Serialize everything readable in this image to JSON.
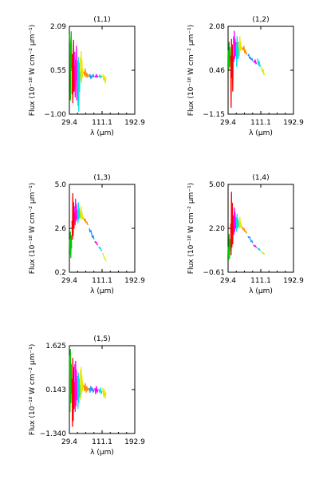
{
  "chart_data": [
    {
      "type": "line",
      "title": "(1,1)",
      "xlabel": "λ (μm)",
      "ylabel": "Flux (10⁻¹⁸ W cm⁻² μm⁻¹)",
      "x_ticks": [
        "29.4",
        "111.1",
        "192.9"
      ],
      "y_ticks": [
        "2.09",
        "0.55",
        "−1.00"
      ],
      "xlim": [
        29.4,
        192.9
      ],
      "ylim": [
        -1.0,
        2.09
      ],
      "segments": [
        {
          "color": "#00c800",
          "x": [
            30,
            31,
            32,
            33,
            34,
            35
          ],
          "y": [
            1.8,
            1.4,
            -0.5,
            1.2,
            1.9,
            0.6
          ]
        },
        {
          "color": "#ff0000",
          "x": [
            36,
            37,
            38,
            39,
            40,
            41,
            42
          ],
          "y": [
            -0.3,
            1.1,
            -0.6,
            0.9,
            1.6,
            -0.2,
            0.7
          ]
        },
        {
          "color": "#ff00ff",
          "x": [
            43,
            44,
            45,
            46,
            47,
            48,
            49
          ],
          "y": [
            1.2,
            -0.4,
            0.9,
            0.2,
            1.4,
            -0.5,
            0.8
          ]
        },
        {
          "color": "#00e0e0",
          "x": [
            50,
            51,
            52,
            53,
            54,
            55,
            56
          ],
          "y": [
            0.9,
            -0.7,
            1.0,
            -0.9,
            0.8,
            -0.2,
            0.5
          ]
        },
        {
          "color": "#e6e600",
          "x": [
            57,
            58,
            59,
            60,
            61,
            62,
            63
          ],
          "y": [
            1.0,
            0.2,
            1.2,
            0.1,
            0.9,
            0.3,
            0.6
          ]
        },
        {
          "color": "#ff8c00",
          "x": [
            65,
            67,
            69,
            71,
            73,
            75,
            77
          ],
          "y": [
            0.5,
            0.35,
            0.6,
            0.3,
            0.45,
            0.3,
            0.4
          ]
        },
        {
          "color": "#1e90ff",
          "x": [
            79,
            81,
            83,
            85,
            87,
            89,
            91
          ],
          "y": [
            0.3,
            0.4,
            0.25,
            0.35,
            0.3,
            0.4,
            0.3
          ]
        },
        {
          "color": "#ff00ff",
          "x": [
            93,
            95,
            97,
            99,
            101
          ],
          "y": [
            0.35,
            0.3,
            0.4,
            0.3,
            0.35
          ]
        },
        {
          "color": "#00e0e0",
          "x": [
            103,
            105,
            107,
            109,
            111
          ],
          "y": [
            0.3,
            0.38,
            0.28,
            0.35,
            0.3
          ]
        },
        {
          "color": "#e6e600",
          "x": [
            113,
            115,
            117,
            119,
            121
          ],
          "y": [
            0.4,
            0.2,
            0.35,
            0.1,
            0.3
          ]
        }
      ]
    },
    {
      "type": "line",
      "title": "(1,2)",
      "xlabel": "λ (μm)",
      "ylabel": "Flux (10⁻¹⁸ W cm⁻² μm⁻¹)",
      "x_ticks": [
        "29.4",
        "111.1",
        "192.9"
      ],
      "y_ticks": [
        "2.08",
        "0.46",
        "−1.15"
      ],
      "xlim": [
        29.4,
        192.9
      ],
      "ylim": [
        -1.15,
        2.08
      ],
      "segments": [
        {
          "color": "#00c800",
          "x": [
            30,
            31,
            32,
            33,
            34,
            35
          ],
          "y": [
            1.2,
            0.5,
            1.5,
            0.6,
            1.3,
            0.8
          ]
        },
        {
          "color": "#ff0000",
          "x": [
            36,
            37,
            38,
            39,
            40,
            41,
            42
          ],
          "y": [
            1.0,
            -0.9,
            1.6,
            0.2,
            1.4,
            -0.3,
            1.0
          ]
        },
        {
          "color": "#ff00ff",
          "x": [
            43,
            44,
            45,
            46,
            47,
            48,
            49
          ],
          "y": [
            1.7,
            0.8,
            1.9,
            0.9,
            1.6,
            1.0,
            1.5
          ]
        },
        {
          "color": "#00e0e0",
          "x": [
            50,
            51,
            52,
            53,
            54,
            55,
            56
          ],
          "y": [
            1.4,
            0.6,
            1.7,
            0.9,
            1.5,
            0.9,
            1.3
          ]
        },
        {
          "color": "#e6e600",
          "x": [
            57,
            58,
            59,
            60,
            61,
            62,
            63
          ],
          "y": [
            1.5,
            1.0,
            1.7,
            1.2,
            1.5,
            1.2,
            1.35
          ]
        },
        {
          "color": "#ff8c00",
          "x": [
            65,
            67,
            69,
            71,
            73,
            75,
            77
          ],
          "y": [
            1.3,
            1.2,
            1.35,
            1.1,
            1.2,
            1.05,
            1.1
          ]
        },
        {
          "color": "#1e90ff",
          "x": [
            79,
            81,
            83,
            85,
            87,
            89,
            91
          ],
          "y": [
            1.0,
            1.05,
            0.9,
            0.95,
            0.85,
            0.9,
            0.8
          ]
        },
        {
          "color": "#ff00ff",
          "x": [
            93,
            95,
            97,
            99,
            101
          ],
          "y": [
            0.8,
            0.75,
            0.85,
            0.7,
            0.75
          ]
        },
        {
          "color": "#00e0e0",
          "x": [
            103,
            105,
            107,
            109,
            111
          ],
          "y": [
            0.9,
            0.65,
            0.8,
            0.6,
            0.65
          ]
        },
        {
          "color": "#e6e600",
          "x": [
            113,
            115,
            117,
            119,
            121
          ],
          "y": [
            0.6,
            0.4,
            0.5,
            0.3,
            0.35
          ]
        }
      ]
    },
    {
      "type": "line",
      "title": "(1,3)",
      "xlabel": "λ (μm)",
      "ylabel": "Flux (10⁻¹⁸ W cm⁻² μm⁻¹)",
      "x_ticks": [
        "29.4",
        "111.1",
        "192.9"
      ],
      "y_ticks": [
        "5.0",
        "2.6",
        "0.2"
      ],
      "xlim": [
        29.4,
        192.9
      ],
      "ylim": [
        0.2,
        5.0
      ],
      "segments": [
        {
          "color": "#00c800",
          "x": [
            30,
            31,
            32,
            33,
            34,
            35
          ],
          "y": [
            2.0,
            1.2,
            2.4,
            1.0,
            2.2,
            1.5
          ]
        },
        {
          "color": "#ff0000",
          "x": [
            36,
            37,
            38,
            39,
            40,
            41,
            42
          ],
          "y": [
            3.0,
            2.0,
            4.5,
            2.2,
            4.0,
            2.6,
            3.5
          ]
        },
        {
          "color": "#ff00ff",
          "x": [
            43,
            44,
            45,
            46,
            47,
            48,
            49
          ],
          "y": [
            3.8,
            2.8,
            4.2,
            3.0,
            3.9,
            3.1,
            3.6
          ]
        },
        {
          "color": "#00e0e0",
          "x": [
            50,
            51,
            52,
            53,
            54,
            55,
            56
          ],
          "y": [
            3.6,
            2.9,
            4.0,
            3.1,
            3.7,
            3.2,
            3.4
          ]
        },
        {
          "color": "#e6e600",
          "x": [
            57,
            58,
            59,
            60,
            61,
            62,
            63
          ],
          "y": [
            3.6,
            3.1,
            3.8,
            3.2,
            3.5,
            3.1,
            3.3
          ]
        },
        {
          "color": "#ff8c00",
          "x": [
            65,
            67,
            69,
            71,
            73,
            75,
            77
          ],
          "y": [
            3.2,
            3.0,
            3.1,
            2.9,
            2.95,
            2.8,
            2.8
          ]
        },
        {
          "color": "#1e90ff",
          "x": [
            79,
            81,
            83,
            85,
            87,
            89,
            91
          ],
          "y": [
            2.6,
            2.4,
            2.5,
            2.3,
            2.1,
            2.2,
            2.0
          ]
        },
        {
          "color": "#ff00ff",
          "x": [
            93,
            95,
            97,
            99,
            101
          ],
          "y": [
            1.9,
            1.8,
            1.85,
            1.7,
            1.7
          ]
        },
        {
          "color": "#00e0e0",
          "x": [
            103,
            105,
            107,
            109,
            111
          ],
          "y": [
            1.6,
            1.5,
            1.55,
            1.4,
            1.35
          ]
        },
        {
          "color": "#e6e600",
          "x": [
            113,
            115,
            117,
            119,
            121
          ],
          "y": [
            1.25,
            1.1,
            1.0,
            0.9,
            0.8
          ]
        }
      ]
    },
    {
      "type": "line",
      "title": "(1,4)",
      "xlabel": "λ (μm)",
      "ylabel": "Flux (10⁻¹⁸ W cm⁻² μm⁻¹)",
      "x_ticks": [
        "29.4",
        "111.1",
        "192.9"
      ],
      "y_ticks": [
        "5.00",
        "2.20",
        "−0.61"
      ],
      "xlim": [
        29.4,
        192.9
      ],
      "ylim": [
        -0.61,
        5.0
      ],
      "segments": [
        {
          "color": "#00c800",
          "x": [
            30,
            31,
            32,
            33,
            34,
            35
          ],
          "y": [
            1.0,
            0.2,
            1.8,
            0.3,
            1.5,
            0.8
          ]
        },
        {
          "color": "#ff0000",
          "x": [
            36,
            37,
            38,
            39,
            40,
            41,
            42
          ],
          "y": [
            2.5,
            0.5,
            4.5,
            1.0,
            3.8,
            1.2,
            3.0
          ]
        },
        {
          "color": "#ff00ff",
          "x": [
            43,
            44,
            45,
            46,
            47,
            48,
            49
          ],
          "y": [
            3.0,
            1.8,
            3.5,
            2.0,
            3.2,
            2.2,
            2.9
          ]
        },
        {
          "color": "#00e0e0",
          "x": [
            50,
            51,
            52,
            53,
            54,
            55,
            56
          ],
          "y": [
            2.9,
            2.0,
            3.1,
            2.2,
            2.8,
            2.3,
            2.6
          ]
        },
        {
          "color": "#e6e600",
          "x": [
            57,
            58,
            59,
            60,
            61,
            62,
            63
          ],
          "y": [
            2.7,
            2.2,
            2.9,
            2.3,
            2.6,
            2.2,
            2.4
          ]
        },
        {
          "color": "#ff8c00",
          "x": [
            65,
            67,
            69,
            71,
            73,
            75,
            77
          ],
          "y": [
            2.3,
            2.1,
            2.2,
            2.0,
            2.05,
            1.9,
            1.9
          ]
        },
        {
          "color": "#1e90ff",
          "x": [
            79,
            81,
            83,
            85,
            87,
            89,
            91
          ],
          "y": [
            1.7,
            1.6,
            1.65,
            1.5,
            1.35,
            1.4,
            1.25
          ]
        },
        {
          "color": "#ff00ff",
          "x": [
            93,
            95,
            97,
            99,
            101
          ],
          "y": [
            1.15,
            1.05,
            1.1,
            1.0,
            0.95
          ]
        },
        {
          "color": "#00e0e0",
          "x": [
            103,
            105,
            107,
            109,
            111
          ],
          "y": [
            0.95,
            0.85,
            0.9,
            0.8,
            0.75
          ]
        },
        {
          "color": "#e6e600",
          "x": [
            113,
            115,
            117,
            119,
            121
          ],
          "y": [
            0.7,
            0.6,
            0.65,
            0.55,
            0.6
          ]
        }
      ]
    },
    {
      "type": "line",
      "title": "(1,5)",
      "xlabel": "λ (μm)",
      "ylabel": "Flux (10⁻¹⁸ W cm⁻² μm⁻¹)",
      "x_ticks": [
        "29.4",
        "111.1",
        "192.9"
      ],
      "y_ticks": [
        "1.625",
        "0.143",
        "−1.340"
      ],
      "xlim": [
        29.4,
        192.9
      ],
      "ylim": [
        -1.34,
        1.625
      ],
      "segments": [
        {
          "color": "#00c800",
          "x": [
            30,
            31,
            32,
            33,
            34,
            35
          ],
          "y": [
            1.3,
            -0.6,
            1.5,
            -0.3,
            1.0,
            0.0
          ]
        },
        {
          "color": "#ff0000",
          "x": [
            36,
            37,
            38,
            39,
            40,
            41,
            42
          ],
          "y": [
            0.5,
            -1.1,
            1.2,
            -0.9,
            0.9,
            -0.5,
            0.4
          ]
        },
        {
          "color": "#ff00ff",
          "x": [
            43,
            44,
            45,
            46,
            47,
            48,
            49
          ],
          "y": [
            1.0,
            -0.6,
            1.1,
            -0.4,
            0.8,
            -0.2,
            0.5
          ]
        },
        {
          "color": "#00e0e0",
          "x": [
            50,
            51,
            52,
            53,
            54,
            55,
            56
          ],
          "y": [
            0.6,
            -0.5,
            0.7,
            -0.3,
            0.5,
            -0.1,
            0.3
          ]
        },
        {
          "color": "#e6e600",
          "x": [
            57,
            58,
            59,
            60,
            61,
            62,
            63
          ],
          "y": [
            0.8,
            -0.2,
            0.9,
            0.0,
            0.6,
            0.1,
            0.4
          ]
        },
        {
          "color": "#ff8c00",
          "x": [
            65,
            67,
            69,
            71,
            73,
            75,
            77
          ],
          "y": [
            0.3,
            0.1,
            0.35,
            0.05,
            0.25,
            0.1,
            0.2
          ]
        },
        {
          "color": "#1e90ff",
          "x": [
            79,
            81,
            83,
            85,
            87,
            89,
            91
          ],
          "y": [
            0.2,
            0.05,
            0.25,
            0.1,
            0.2,
            0.05,
            0.15
          ]
        },
        {
          "color": "#ff00ff",
          "x": [
            93,
            95,
            97,
            99,
            101
          ],
          "y": [
            0.2,
            0.0,
            0.25,
            0.05,
            0.15
          ]
        },
        {
          "color": "#00e0e0",
          "x": [
            103,
            105,
            107,
            109,
            111
          ],
          "y": [
            0.15,
            0.05,
            0.2,
            0.0,
            0.1
          ]
        },
        {
          "color": "#e6e600",
          "x": [
            113,
            115,
            117,
            119,
            121
          ],
          "y": [
            0.2,
            -0.1,
            0.15,
            -0.15,
            0.05
          ]
        }
      ]
    }
  ]
}
